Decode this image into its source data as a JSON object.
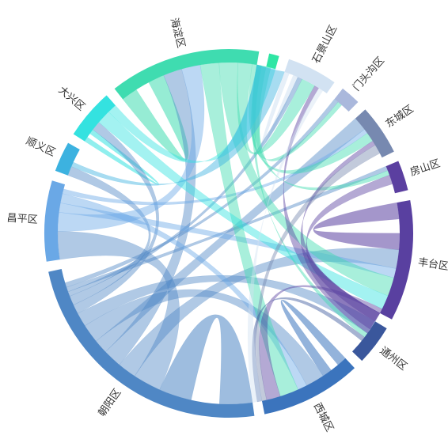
{
  "chart_data": {
    "type": "chord",
    "districts": [
      {
        "name": "朝阳区",
        "color": "#4f87c5",
        "value": 27
      },
      {
        "name": "昌平区",
        "color": "#6aa8e6",
        "value": 8
      },
      {
        "name": "顺义区",
        "color": "#3cb2e0",
        "value": 3
      },
      {
        "name": "大兴区",
        "color": "#34e2e0",
        "value": 5
      },
      {
        "name": "海淀区",
        "color": "#3fdcb0",
        "value": 15
      },
      {
        "name": "",
        "color": "#2fe6a4",
        "value": 1
      },
      {
        "name": "石景山区",
        "color": "#d2e2f2",
        "value": 5
      },
      {
        "name": "门头沟区",
        "color": "#aab8dc",
        "value": 2
      },
      {
        "name": "东城区",
        "color": "#7789b0",
        "value": 5
      },
      {
        "name": "房山区",
        "color": "#5b3fa0",
        "value": 3
      },
      {
        "name": "丰台区",
        "color": "#5940a0",
        "value": 12
      },
      {
        "name": "通州区",
        "color": "#3a579c",
        "value": 4
      },
      {
        "name": "西城区",
        "color": "#3b74bd",
        "value": 10
      }
    ],
    "links": [
      {
        "source": "朝阳区",
        "target": "朝阳区",
        "value": 10
      },
      {
        "source": "丰台区",
        "target": "丰台区",
        "value": 5
      },
      {
        "source": "海淀区",
        "target": "海淀区",
        "value": 5
      },
      {
        "source": "西城区",
        "target": "西城区",
        "value": 3
      },
      {
        "source": "大兴区",
        "target": "大兴区",
        "value": 1.5
      },
      {
        "source": "石景山区",
        "target": "石景山区",
        "value": 1.5
      },
      {
        "source": "朝阳区",
        "target": "昌平区",
        "value": 3
      },
      {
        "source": "朝阳区",
        "target": "丰台区",
        "value": 2
      },
      {
        "source": "朝阳区",
        "target": "海淀区",
        "value": 2
      },
      {
        "source": "朝阳区",
        "target": "东城区",
        "value": 1.5
      },
      {
        "source": "朝阳区",
        "target": "西城区",
        "value": 2
      },
      {
        "source": "朝阳区",
        "target": "通州区",
        "value": 1.5
      },
      {
        "source": "朝阳区",
        "target": "大兴区",
        "value": 1
      },
      {
        "source": "朝阳区",
        "target": "顺义区",
        "value": 1
      },
      {
        "source": "朝阳区",
        "target": "石景山区",
        "value": 0.5
      },
      {
        "source": "朝阳区",
        "target": "房山区",
        "value": 0.5
      },
      {
        "source": "朝阳区",
        "target": "门头沟区",
        "value": 0.5
      },
      {
        "source": "昌平区",
        "target": "海淀区",
        "value": 2
      },
      {
        "source": "昌平区",
        "target": "丰台区",
        "value": 1
      },
      {
        "source": "昌平区",
        "target": "西城区",
        "value": 1
      },
      {
        "source": "昌平区",
        "target": "东城区",
        "value": 0.5
      },
      {
        "source": "海淀区",
        "target": "西城区",
        "value": 2
      },
      {
        "source": "海淀区",
        "target": "丰台区",
        "value": 2
      },
      {
        "source": "海淀区",
        "target": "石景山区",
        "value": 1.5
      },
      {
        "source": "海淀区",
        "target": "东城区",
        "value": 1
      },
      {
        "source": "海淀区",
        "target": "通州区",
        "value": 0.5
      },
      {
        "source": "海淀区",
        "target": "房山区",
        "value": 0.5
      },
      {
        "source": "海淀区",
        "target": "门头沟区",
        "value": 0.5
      },
      {
        "source": "大兴区",
        "target": "丰台区",
        "value": 1.5
      },
      {
        "source": "大兴区",
        "target": "海淀区",
        "value": 1
      },
      {
        "source": "丰台区",
        "target": "西城区",
        "value": 1.5
      },
      {
        "source": "丰台区",
        "target": "房山区",
        "value": 1
      },
      {
        "source": "丰台区",
        "target": "东城区",
        "value": 0.5
      },
      {
        "source": "丰台区",
        "target": "石景山区",
        "value": 0.5
      },
      {
        "source": "东城区",
        "target": "西城区",
        "value": 1
      },
      {
        "source": "通州区",
        "target": "西城区",
        "value": 0.5
      },
      {
        "source": "顺义区",
        "target": "海淀区",
        "value": 0.5
      },
      {
        "source": "石景山区",
        "target": "西城区",
        "value": 0.5
      }
    ]
  }
}
